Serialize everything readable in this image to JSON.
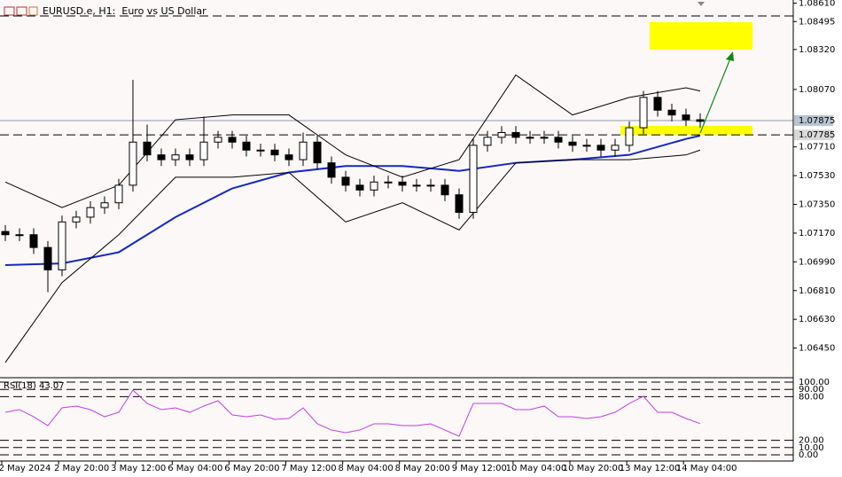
{
  "chart_data": [
    {
      "type": "candlestick",
      "title": "EURUSD.e, H1:  Euro vs US Dollar",
      "ylim": [
        1.0627,
        1.0863
      ],
      "yticks": [
        {
          "value": 1.0861,
          "label": "1.08610"
        },
        {
          "value": 1.08495,
          "label": "1.08495"
        },
        {
          "value": 1.0832,
          "label": "1.08320"
        },
        {
          "value": 1.0807,
          "label": "1.08070"
        },
        {
          "value": 1.0771,
          "label": "1.07710"
        },
        {
          "value": 1.0753,
          "label": "1.07530"
        },
        {
          "value": 1.0735,
          "label": "1.07350"
        },
        {
          "value": 1.0717,
          "label": "1.07170"
        },
        {
          "value": 1.0699,
          "label": "1.06990"
        },
        {
          "value": 1.0681,
          "label": "1.06810"
        },
        {
          "value": 1.0663,
          "label": "1.06630"
        },
        {
          "value": 1.0645,
          "label": "1.06450"
        }
      ],
      "open": [
        1.0718,
        1.0716,
        1.0716,
        1.0708,
        1.0694,
        1.0724,
        1.0727,
        1.0733,
        1.0736,
        1.0747,
        1.0774,
        1.0766,
        1.0763,
        1.0766,
        1.0763,
        1.0774,
        1.0777,
        1.0774,
        1.0769,
        1.0769,
        1.0766,
        1.0763,
        1.0774,
        1.0761,
        1.0752,
        1.0747,
        1.0744,
        1.0749,
        1.0749,
        1.0747,
        1.0747,
        1.0747,
        1.0741,
        1.073,
        1.0772,
        1.0777,
        1.078,
        1.0777,
        1.0777,
        1.0777,
        1.0774,
        1.0772,
        1.0772,
        1.0769,
        1.0772,
        1.0783,
        1.0802,
        1.0794,
        1.0791,
        1.0788
      ],
      "high": [
        1.0722,
        1.072,
        1.072,
        1.0712,
        1.0728,
        1.0731,
        1.0737,
        1.074,
        1.0751,
        1.0813,
        1.0785,
        1.077,
        1.077,
        1.077,
        1.079,
        1.0781,
        1.0781,
        1.0778,
        1.0773,
        1.0773,
        1.077,
        1.078,
        1.0778,
        1.0765,
        1.0756,
        1.0751,
        1.0753,
        1.0753,
        1.0753,
        1.0751,
        1.0751,
        1.0751,
        1.0745,
        1.0776,
        1.0781,
        1.0784,
        1.0784,
        1.0781,
        1.0781,
        1.0781,
        1.0778,
        1.0776,
        1.0776,
        1.0776,
        1.0787,
        1.0806,
        1.0806,
        1.0798,
        1.0795,
        1.0792
      ],
      "low": [
        1.0712,
        1.0712,
        1.0704,
        1.068,
        1.069,
        1.072,
        1.0723,
        1.0729,
        1.0732,
        1.0743,
        1.0762,
        1.0759,
        1.0759,
        1.0759,
        1.0759,
        1.077,
        1.077,
        1.0765,
        1.0765,
        1.0762,
        1.0759,
        1.0759,
        1.0757,
        1.0748,
        1.0743,
        1.074,
        1.074,
        1.0745,
        1.0743,
        1.0743,
        1.0743,
        1.0737,
        1.0726,
        1.0726,
        1.0768,
        1.0773,
        1.0773,
        1.0773,
        1.0773,
        1.077,
        1.0768,
        1.0768,
        1.0765,
        1.0765,
        1.0768,
        1.0779,
        1.079,
        1.0787,
        1.0784,
        1.0783
      ],
      "close": [
        1.0716,
        1.0716,
        1.0708,
        1.0694,
        1.0724,
        1.0727,
        1.0733,
        1.0736,
        1.0747,
        1.0774,
        1.0766,
        1.0763,
        1.0766,
        1.0763,
        1.0774,
        1.0777,
        1.0774,
        1.0769,
        1.0769,
        1.0766,
        1.0763,
        1.0774,
        1.0761,
        1.0752,
        1.0747,
        1.0744,
        1.0749,
        1.0749,
        1.0747,
        1.0747,
        1.0747,
        1.0741,
        1.073,
        1.0772,
        1.0777,
        1.078,
        1.0777,
        1.0777,
        1.0777,
        1.0774,
        1.0772,
        1.0772,
        1.0769,
        1.0772,
        1.0783,
        1.0802,
        1.0794,
        1.0791,
        1.0788,
        1.0787
      ],
      "up_color": "#ffffff",
      "down_color": "#000000",
      "wick_color": "#000000",
      "series": [
        {
          "color": "#1428c0",
          "width": 2,
          "x": [
            0,
            4,
            8,
            12,
            16,
            20,
            24,
            28,
            32,
            36,
            40,
            44,
            48,
            49
          ],
          "values": [
            1.0697,
            1.0698,
            1.0705,
            1.0727,
            1.0745,
            1.0755,
            1.0759,
            1.0759,
            1.0756,
            1.0761,
            1.0763,
            1.0766,
            1.0776,
            1.0778
          ]
        },
        {
          "color": "#000000",
          "width": 1,
          "x": [
            0,
            4,
            8,
            12,
            16,
            20,
            24,
            28,
            32,
            36,
            40,
            44,
            48,
            49
          ],
          "values": [
            1.0749,
            1.0733,
            1.0747,
            1.0788,
            1.0791,
            1.0791,
            1.0766,
            1.0752,
            1.0763,
            1.0816,
            1.0791,
            1.0802,
            1.0808,
            1.0806
          ]
        },
        {
          "color": "#000000",
          "width": 1,
          "x": [
            0,
            4,
            8,
            12,
            16,
            20,
            24,
            28,
            32,
            36,
            40,
            44,
            48,
            49
          ],
          "values": [
            1.0636,
            1.0686,
            1.0716,
            1.0752,
            1.0752,
            1.0755,
            1.0724,
            1.0736,
            1.0719,
            1.0761,
            1.0763,
            1.0763,
            1.0766,
            1.0769
          ]
        }
      ],
      "levels": [
        {
          "value": 1.0853,
          "style": "dashed",
          "labeled": false
        },
        {
          "value": 1.07875,
          "style": "solid",
          "labeled": true
        },
        {
          "value": 1.07785,
          "style": "dashed",
          "labeled": true
        }
      ],
      "x_labels": [
        "2 May 2024",
        "2 May 20:00",
        "3 May 12:00",
        "6 May 04:00",
        "6 May 20:00",
        "7 May 12:00",
        "8 May 04:00",
        "8 May 20:00",
        "9 May 12:00",
        "10 May 04:00",
        "10 May 20:00",
        "13 May 12:00",
        "14 May 04:00"
      ]
    },
    {
      "type": "line",
      "title": "RSI(18) 43.07",
      "ylim": [
        0,
        100
      ],
      "yticks": [
        {
          "value": 100,
          "label": "100.00"
        },
        {
          "value": 90,
          "label": "90.00"
        },
        {
          "value": 80,
          "label": "80.00"
        },
        {
          "value": 20,
          "label": "20.00"
        },
        {
          "value": 10,
          "label": "10.00"
        },
        {
          "value": 0,
          "label": "0.00"
        }
      ],
      "grid": "dashed",
      "color": "#c040e0",
      "values": [
        58.5,
        62.2,
        52.4,
        40.2,
        64.6,
        67.1,
        62.2,
        52.4,
        58.5,
        89.0,
        70.7,
        62.2,
        64.6,
        58.5,
        67.1,
        74.4,
        54.9,
        52.4,
        54.9,
        48.8,
        50.0,
        64.6,
        42.7,
        34.1,
        30.5,
        34.1,
        42.7,
        42.7,
        40.2,
        40.2,
        42.7,
        34.1,
        25.6,
        70.7,
        70.7,
        70.7,
        62.2,
        62.2,
        67.1,
        52.4,
        52.4,
        50.0,
        52.4,
        58.5,
        70.7,
        80.5,
        58.5,
        58.5,
        50.0,
        43.07
      ]
    }
  ]
}
